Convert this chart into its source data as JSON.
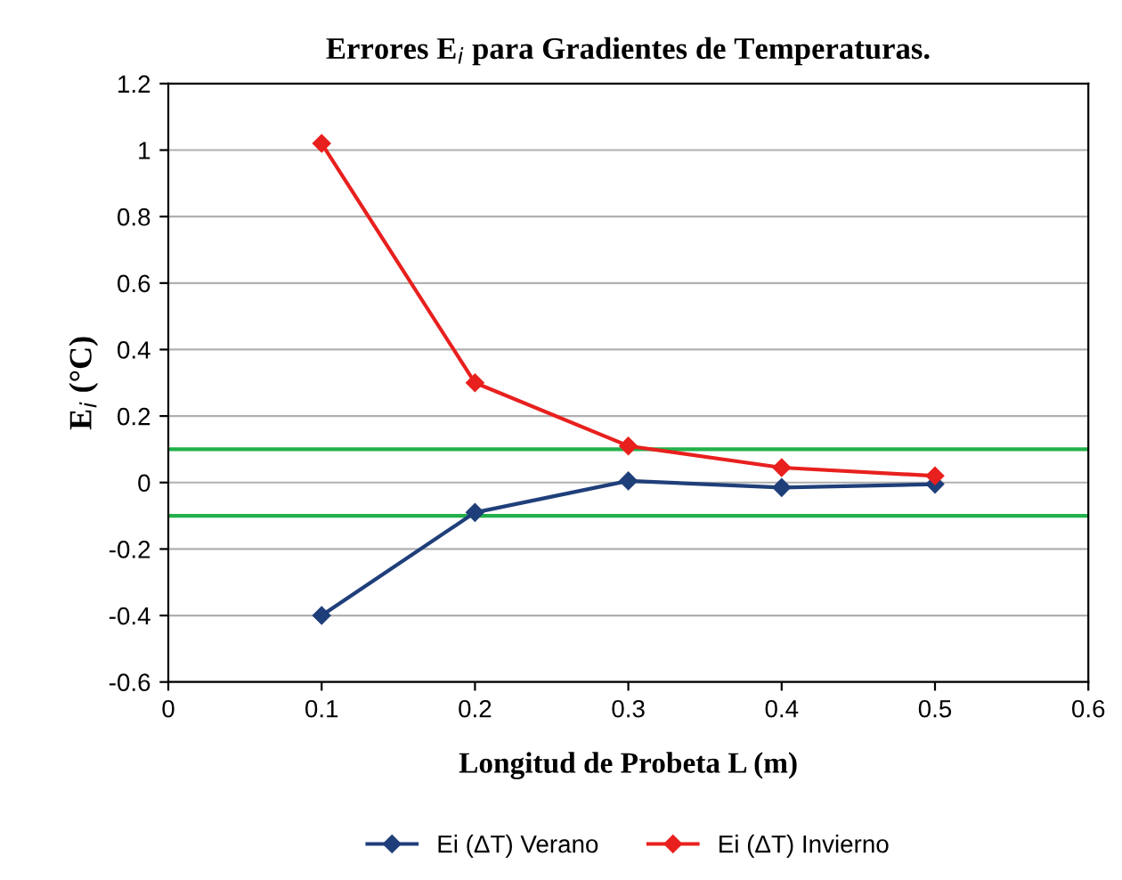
{
  "chart_data": {
    "type": "line",
    "title": "Errores E$_{i}$ para Gradientes de Temperaturas.",
    "xlabel": "Longitud de Probeta L (m)",
    "ylabel": "E$_{i}$ (°C)",
    "x": [
      0.1,
      0.2,
      0.3,
      0.4,
      0.5
    ],
    "series": [
      {
        "name": "Ei (ΔT) Verano",
        "color": "#1f3f7a",
        "values": [
          -0.4,
          -0.09,
          0.005,
          -0.015,
          -0.005
        ]
      },
      {
        "name": "Ei (ΔT) Invierno",
        "color": "#e8201e",
        "values": [
          1.02,
          0.3,
          0.11,
          0.045,
          0.02
        ]
      }
    ],
    "ref_lines": [
      {
        "axis": "y",
        "value": 0.1,
        "label": null,
        "color": "#22b04a"
      },
      {
        "axis": "y",
        "value": -0.1,
        "label": null,
        "color": "#22b04a"
      }
    ],
    "xlim": [
      0,
      0.6
    ],
    "xticks": [
      0,
      0.1,
      0.2,
      0.3,
      0.4,
      0.5,
      0.6
    ],
    "ylim": [
      -0.6,
      1.2
    ],
    "yticks": [
      -0.6,
      -0.4,
      -0.2,
      0,
      0.2,
      0.4,
      0.6,
      0.8,
      1,
      1.2
    ],
    "grid": "y",
    "legend": "bottom",
    "marker": "diamond",
    "line_style": "solid"
  }
}
